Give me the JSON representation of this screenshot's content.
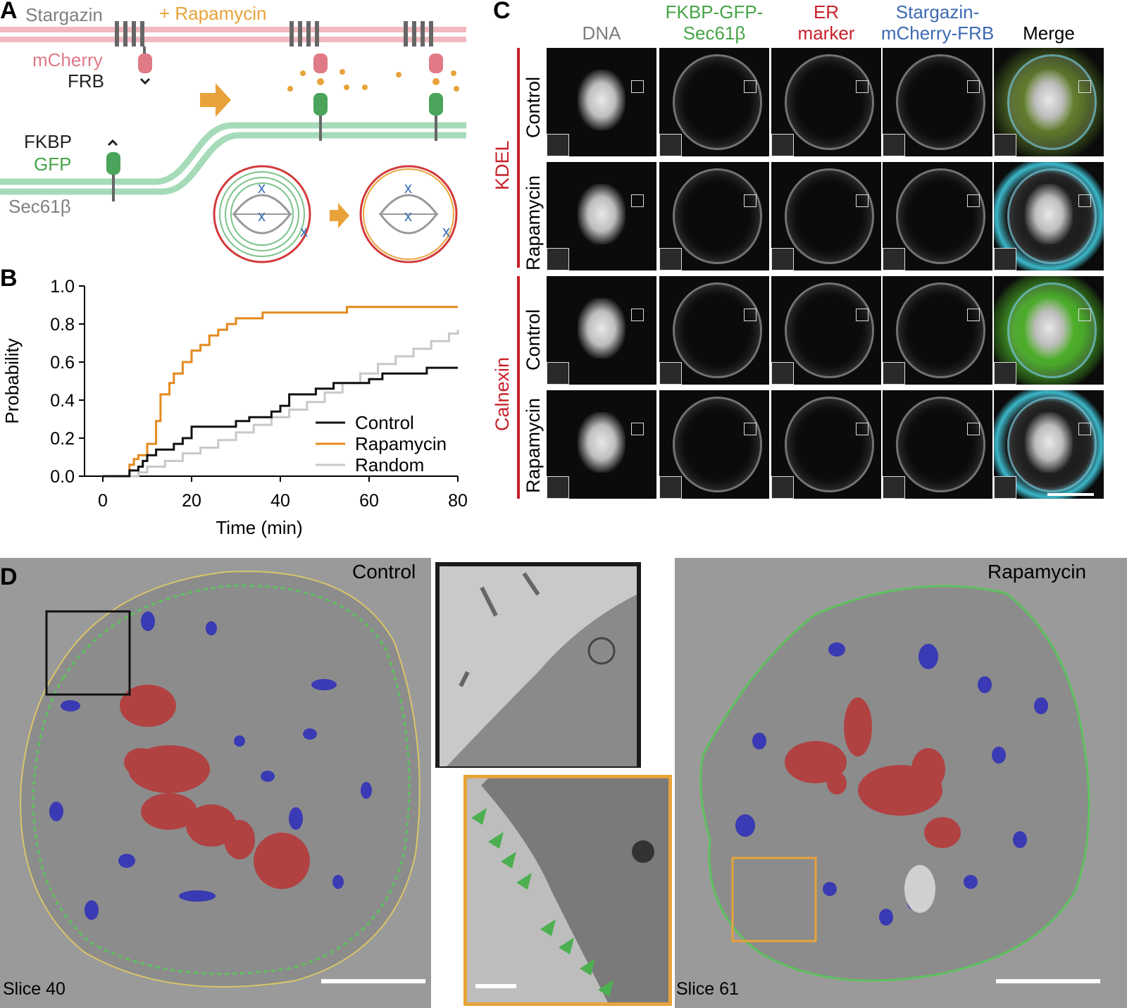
{
  "panel_a": {
    "letter": "A",
    "stargazin": "Stargazin",
    "rapamycin": "+ Rapamycin",
    "mcherry": "mCherry",
    "frb": "FRB",
    "fkbp": "FKBP",
    "gfp": "GFP",
    "sec61b": "Sec61β",
    "colors": {
      "pm": "#f1b9bf",
      "er": "#a6dbb9",
      "orange": "#e8a33a",
      "green": "#4aa55a",
      "pink": "#e07a86",
      "blue": "#3a6fb5"
    }
  },
  "panel_b": {
    "letter": "B",
    "chart_data": {
      "type": "line",
      "xlabel": "Time (min)",
      "ylabel": "Probability",
      "xlim": [
        0,
        80
      ],
      "ylim": [
        0,
        1.0
      ],
      "xticks": [
        "0",
        "20",
        "40",
        "60",
        "80"
      ],
      "yticks": [
        "0.0",
        "0.2",
        "0.4",
        "0.6",
        "0.8",
        "1.0"
      ],
      "legend": [
        "Control",
        "Rapamycin",
        "Random"
      ],
      "series": [
        {
          "name": "Control",
          "color": "#111111",
          "x": [
            0,
            5,
            6,
            8,
            9,
            10,
            12,
            16,
            18,
            20,
            23,
            30,
            33,
            38,
            40,
            42,
            48,
            52,
            60,
            63,
            73,
            80
          ],
          "y": [
            0,
            0,
            0.03,
            0.05,
            0.08,
            0.11,
            0.14,
            0.17,
            0.2,
            0.26,
            0.26,
            0.29,
            0.31,
            0.34,
            0.37,
            0.43,
            0.46,
            0.49,
            0.51,
            0.54,
            0.57,
            0.57
          ]
        },
        {
          "name": "Rapamycin",
          "color": "#e48a1f",
          "x": [
            0,
            5,
            6,
            7,
            8,
            10,
            12,
            13,
            15,
            16,
            18,
            20,
            22,
            24,
            26,
            28,
            30,
            31,
            34,
            36,
            40,
            48,
            55,
            60,
            80
          ],
          "y": [
            0,
            0,
            0.06,
            0.09,
            0.11,
            0.17,
            0.29,
            0.43,
            0.49,
            0.54,
            0.6,
            0.66,
            0.69,
            0.74,
            0.77,
            0.8,
            0.83,
            0.83,
            0.83,
            0.86,
            0.86,
            0.86,
            0.89,
            0.89,
            0.89
          ]
        },
        {
          "name": "Random",
          "color": "#c8c8c8",
          "x": [
            0,
            5,
            8,
            10,
            14,
            18,
            22,
            26,
            30,
            34,
            38,
            42,
            46,
            50,
            54,
            58,
            62,
            66,
            70,
            74,
            78,
            80
          ],
          "y": [
            0,
            0,
            0.02,
            0.05,
            0.08,
            0.12,
            0.15,
            0.19,
            0.23,
            0.27,
            0.31,
            0.35,
            0.39,
            0.44,
            0.49,
            0.54,
            0.59,
            0.63,
            0.67,
            0.71,
            0.75,
            0.77
          ]
        }
      ]
    }
  },
  "panel_c": {
    "letter": "C",
    "columns": [
      {
        "line1": "",
        "line2": "DNA",
        "color": "#7d7d7d"
      },
      {
        "line1": "FKBP-GFP-",
        "line2": "Sec61β",
        "color": "#47a547"
      },
      {
        "line1": "ER",
        "line2": "marker",
        "color": "#c8202a"
      },
      {
        "line1": "Stargazin-",
        "line2": "mCherry-FRB",
        "color": "#3c6ab3"
      },
      {
        "line1": "",
        "line2": "Merge",
        "color": "#000000"
      }
    ],
    "groups": [
      "KDEL",
      "Calnexin"
    ],
    "rows": [
      "Control",
      "Rapamycin",
      "Control",
      "Rapamycin"
    ]
  },
  "panel_d": {
    "letter": "D",
    "control": "Control",
    "rapamycin": "Rapamycin",
    "slice_left": "Slice 40",
    "slice_right": "Slice 61"
  }
}
